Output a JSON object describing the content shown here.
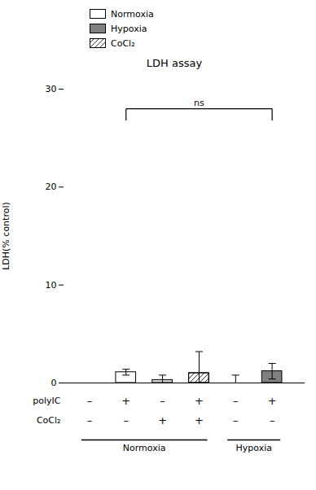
{
  "chart_data": {
    "type": "bar",
    "title": "LDH assay",
    "ylabel": "LDH(% control)",
    "categories": [
      null,
      null,
      null,
      null,
      null,
      null
    ],
    "values": [
      0.0,
      1.1,
      0.3,
      1.0,
      0.0,
      1.2
    ],
    "errors": [
      0.0,
      0.3,
      0.5,
      2.2,
      0.8,
      0.8
    ],
    "colors": [
      "white",
      "white",
      "lightgray",
      "white",
      "white",
      "gray"
    ],
    "hatch": [
      false,
      false,
      false,
      true,
      false,
      false
    ],
    "ylim": [
      0,
      30
    ],
    "yticks": [
      0,
      10,
      20,
      30
    ],
    "tick_labels": "y",
    "label_rows": [
      {
        "label": "polyIC",
        "values": [
          "–",
          "+",
          "–",
          "+",
          "–",
          "+"
        ]
      },
      {
        "label": "CoCl₂",
        "values": [
          "–",
          "–",
          "+",
          "+",
          "–",
          "–"
        ]
      }
    ],
    "groups": [
      {
        "label": "Normoxia",
        "size": 4
      },
      {
        "label": "Hypoxia",
        "size": 2
      }
    ],
    "annotations": [
      {
        "text": "ns",
        "from": 1,
        "to": 5,
        "y": 28,
        "drop": 1.2
      }
    ],
    "legend": "top",
    "legend_entries": [
      {
        "name": "Normoxia",
        "color": "white"
      },
      {
        "name": "Hypoxia",
        "color": "gray"
      },
      {
        "name": "CoCl₂",
        "color": "white",
        "hatch": true
      }
    ]
  }
}
